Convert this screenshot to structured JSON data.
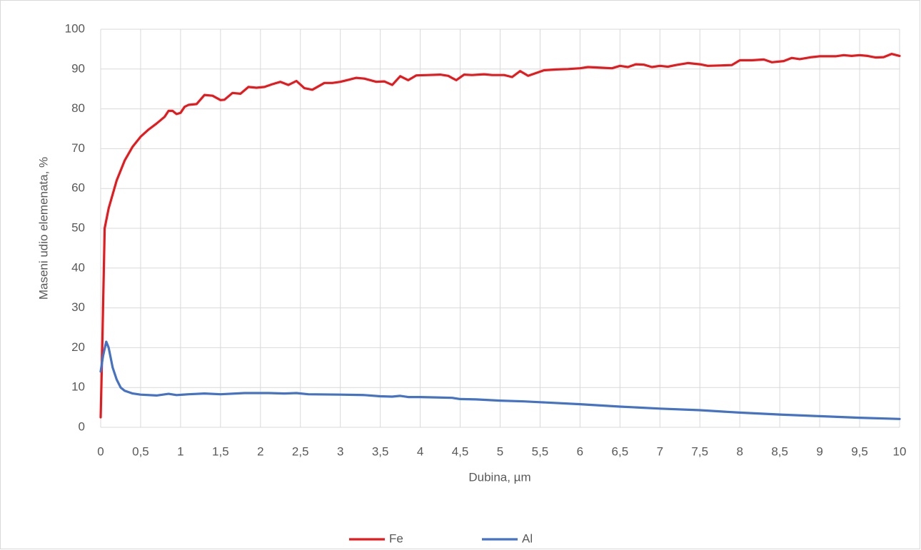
{
  "chart_data": {
    "type": "line",
    "xlabel": "Dubina, µm",
    "ylabel": "Maseni udio elemenata, %",
    "xlim": [
      0,
      10
    ],
    "xticks": [
      0,
      {
        "value": 0.5,
        "label": "0,5"
      },
      1,
      {
        "value": 1.5,
        "label": "1,5"
      },
      2,
      {
        "value": 2.5,
        "label": "2,5"
      },
      3,
      {
        "value": 3.5,
        "label": "3,5"
      },
      4,
      {
        "value": 4.5,
        "label": "4,5"
      },
      5,
      {
        "value": 5.5,
        "label": "5,5"
      },
      6,
      {
        "value": 6.5,
        "label": "6,5"
      },
      7,
      {
        "value": 7.5,
        "label": "7,5"
      },
      8,
      {
        "value": 8.5,
        "label": "8,5"
      },
      9,
      {
        "value": 9.5,
        "label": "9,5"
      },
      10
    ],
    "ylim": [
      0,
      100
    ],
    "yticks": [
      0,
      10,
      20,
      30,
      40,
      50,
      60,
      70,
      80,
      90,
      100
    ],
    "grid": true,
    "legend": "bottom",
    "series": [
      {
        "name": "Fe",
        "color": "#e8191c",
        "x": [
          0,
          0.02,
          0.05,
          0.1,
          0.2,
          0.3,
          0.4,
          0.5,
          0.6,
          0.7,
          0.8,
          0.85,
          0.9,
          0.95,
          1.0,
          1.05,
          1.1,
          1.2,
          1.3,
          1.4,
          1.5,
          1.55,
          1.65,
          1.75,
          1.85,
          1.95,
          2.05,
          2.15,
          2.25,
          2.35,
          2.45,
          2.55,
          2.65,
          2.8,
          2.9,
          3.0,
          3.1,
          3.2,
          3.3,
          3.45,
          3.55,
          3.65,
          3.75,
          3.85,
          3.95,
          4.1,
          4.25,
          4.35,
          4.45,
          4.55,
          4.65,
          4.8,
          4.9,
          5.05,
          5.15,
          5.25,
          5.35,
          5.45,
          5.55,
          5.7,
          5.85,
          6.0,
          6.1,
          6.3,
          6.4,
          6.5,
          6.6,
          6.7,
          6.8,
          6.9,
          7.0,
          7.1,
          7.2,
          7.35,
          7.5,
          7.6,
          7.75,
          7.9,
          8.0,
          8.15,
          8.3,
          8.4,
          8.55,
          8.65,
          8.75,
          8.9,
          9.0,
          9.2,
          9.3,
          9.4,
          9.5,
          9.6,
          9.7,
          9.8,
          9.9,
          10
        ],
        "values": [
          2.5,
          20,
          50,
          55,
          62,
          67,
          70.5,
          73,
          74.8,
          76.3,
          78,
          79.5,
          79.5,
          78.7,
          79,
          80.5,
          81,
          81.2,
          83.5,
          83.3,
          82.2,
          82.3,
          84,
          83.8,
          85.5,
          85.3,
          85.5,
          86.2,
          86.8,
          86,
          87,
          85.2,
          84.8,
          86.5,
          86.5,
          86.8,
          87.3,
          87.8,
          87.6,
          86.8,
          86.9,
          86,
          88.2,
          87.2,
          88.4,
          88.5,
          88.6,
          88.3,
          87.2,
          88.6,
          88.5,
          88.7,
          88.5,
          88.5,
          88,
          89.5,
          88.3,
          89,
          89.7,
          89.9,
          90,
          90.2,
          90.5,
          90.3,
          90.2,
          90.8,
          90.5,
          91.2,
          91.1,
          90.5,
          90.8,
          90.6,
          91,
          91.5,
          91.2,
          90.8,
          90.9,
          91,
          92.2,
          92.2,
          92.4,
          91.7,
          92,
          92.8,
          92.5,
          93,
          93.2,
          93.2,
          93.5,
          93.3,
          93.5,
          93.3,
          92.9,
          93,
          93.8,
          93.3
        ]
      },
      {
        "name": "Al",
        "color": "#4472c4",
        "x": [
          0,
          0.03,
          0.07,
          0.1,
          0.15,
          0.2,
          0.25,
          0.3,
          0.4,
          0.5,
          0.7,
          0.85,
          0.95,
          1.1,
          1.3,
          1.5,
          1.8,
          2.1,
          2.3,
          2.45,
          2.6,
          3.0,
          3.3,
          3.5,
          3.65,
          3.75,
          3.85,
          4.0,
          4.2,
          4.4,
          4.5,
          4.7,
          5.0,
          5.3,
          5.5,
          6.0,
          6.5,
          7.0,
          7.5,
          8.0,
          8.5,
          9.0,
          9.5,
          10
        ],
        "values": [
          14,
          18,
          21.5,
          20,
          15,
          12,
          10,
          9.2,
          8.5,
          8.2,
          8.0,
          8.4,
          8.1,
          8.3,
          8.5,
          8.3,
          8.6,
          8.6,
          8.5,
          8.6,
          8.3,
          8.2,
          8.1,
          7.8,
          7.7,
          7.9,
          7.6,
          7.6,
          7.5,
          7.4,
          7.1,
          7.0,
          6.7,
          6.5,
          6.3,
          5.8,
          5.2,
          4.7,
          4.3,
          3.7,
          3.2,
          2.8,
          2.4,
          2.1
        ]
      }
    ]
  }
}
